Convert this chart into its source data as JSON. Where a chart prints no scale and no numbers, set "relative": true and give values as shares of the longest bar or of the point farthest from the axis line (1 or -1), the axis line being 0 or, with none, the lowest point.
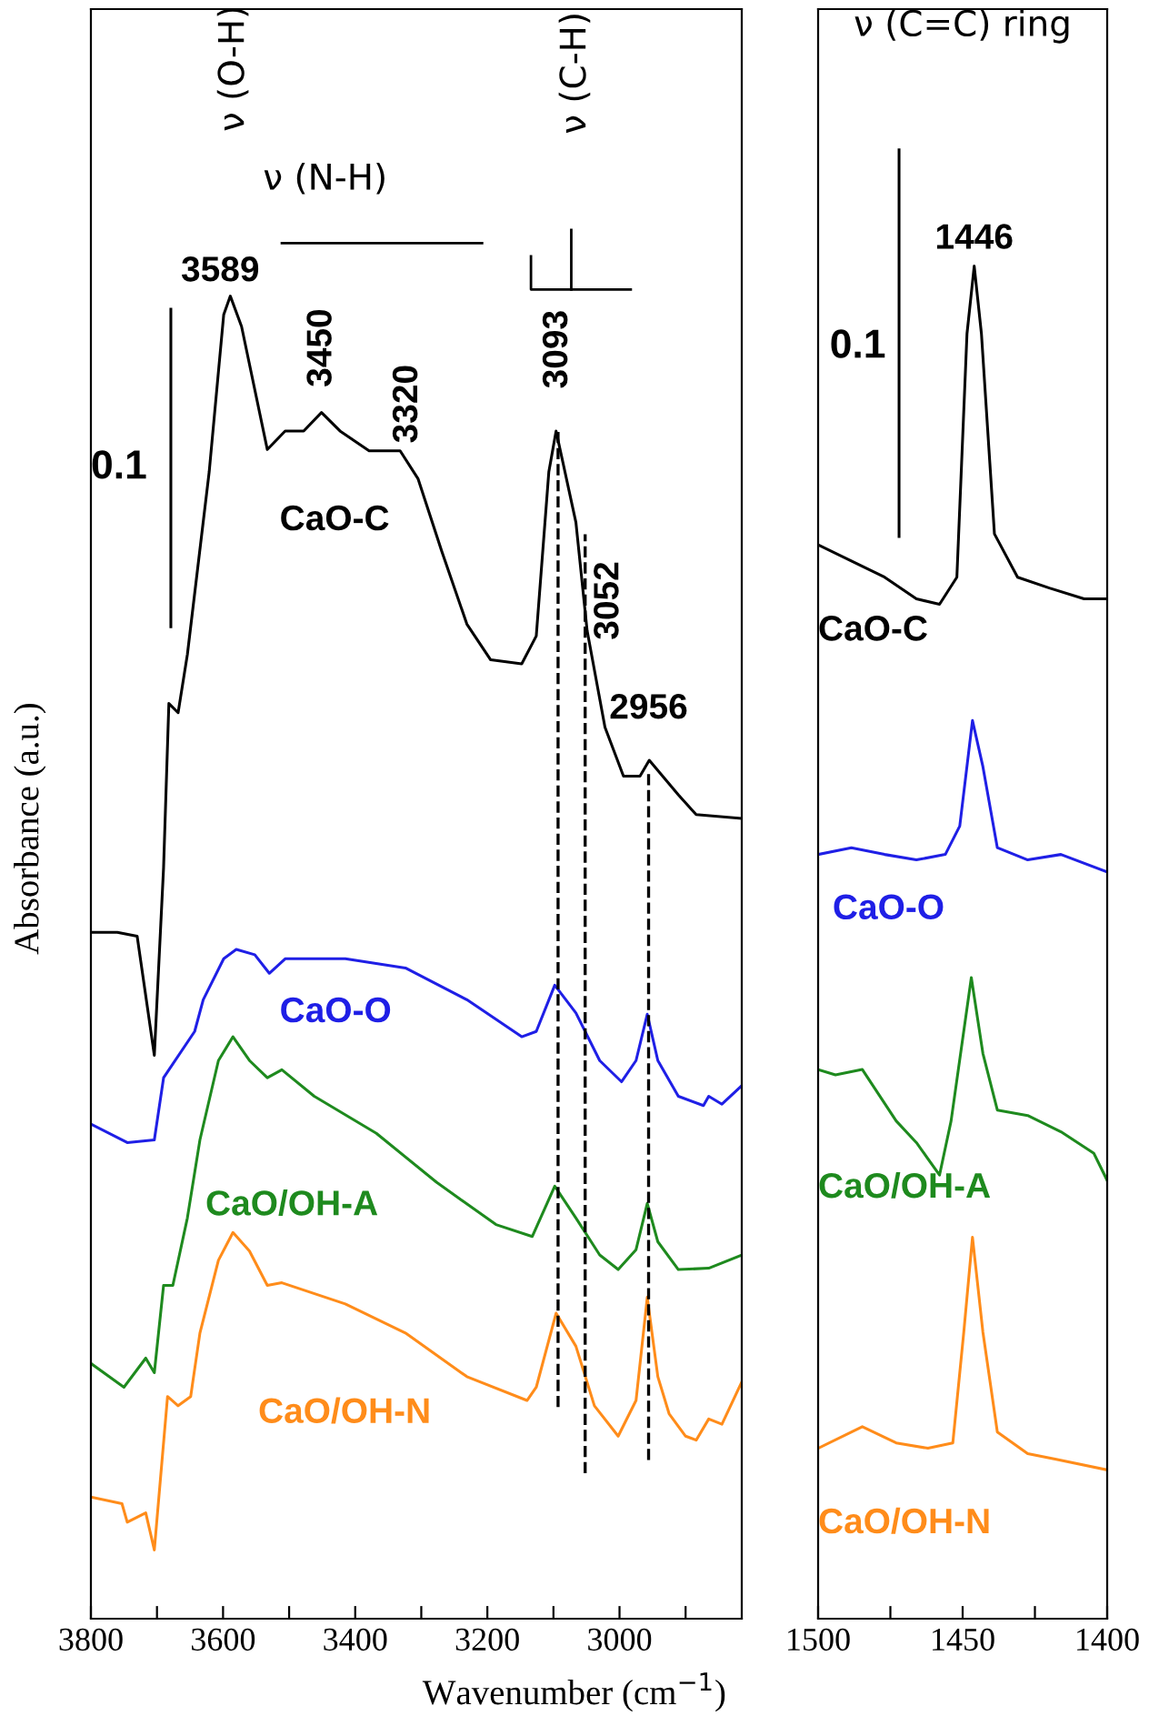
{
  "chart_data": [
    {
      "type": "line",
      "relative": true,
      "xlabel": "Wavenumber (cm$^{−1}$)",
      "ylabel": "Absorbance (a.u.)",
      "tick_labels": "x",
      "grid": false,
      "legend": false,
      "line_style": "solid",
      "marker": "none",
      "xlim": [
        3800,
        2815
      ],
      "xticks": [
        3800,
        {
          "value": 3700,
          "label": null
        },
        3600,
        {
          "value": 3500,
          "label": null
        },
        3400,
        {
          "value": 3300,
          "label": null
        },
        3200,
        {
          "value": 3100,
          "label": null
        },
        3000,
        {
          "value": 2900,
          "label": null
        }
      ],
      "series": [
        {
          "name": "CaO-C",
          "color": "#000000",
          "x": [
            3800,
            3760,
            3730,
            3704,
            3690,
            3682,
            3668,
            3654,
            3621,
            3599,
            3589,
            3572,
            3533,
            3506,
            3478,
            3451,
            3423,
            3379,
            3332,
            3305,
            3269,
            3231,
            3195,
            3148,
            3126,
            3107,
            3096,
            3066,
            3049,
            3022,
            2994,
            2969,
            2955,
            2911,
            2884,
            2815
          ],
          "values": [
            0.519,
            0.519,
            0.516,
            0.426,
            0.568,
            0.692,
            0.685,
            0.729,
            0.867,
            0.986,
            1.0,
            0.977,
            0.884,
            0.898,
            0.898,
            0.912,
            0.898,
            0.883,
            0.883,
            0.862,
            0.807,
            0.752,
            0.725,
            0.722,
            0.743,
            0.867,
            0.898,
            0.829,
            0.747,
            0.674,
            0.637,
            0.637,
            0.649,
            0.623,
            0.608,
            0.605
          ]
        },
        {
          "name": "CaO-O",
          "color": "#1f1fe6",
          "x": [
            3800,
            3745,
            3704,
            3690,
            3643,
            3630,
            3599,
            3580,
            3552,
            3530,
            3506,
            3415,
            3324,
            3231,
            3148,
            3126,
            3098,
            3066,
            3030,
            2997,
            2975,
            2958,
            2942,
            2911,
            2873,
            2865,
            2845,
            2815
          ],
          "values": [
            0.374,
            0.36,
            0.362,
            0.409,
            0.444,
            0.468,
            0.499,
            0.506,
            0.502,
            0.488,
            0.499,
            0.499,
            0.492,
            0.468,
            0.44,
            0.444,
            0.479,
            0.458,
            0.422,
            0.406,
            0.422,
            0.457,
            0.422,
            0.395,
            0.388,
            0.395,
            0.389,
            0.403
          ]
        },
        {
          "name": "CaO/OH-A",
          "color": "#1e8a1e",
          "x": [
            3800,
            3750,
            3717,
            3704,
            3690,
            3676,
            3654,
            3635,
            3607,
            3585,
            3560,
            3533,
            3511,
            3462,
            3368,
            3277,
            3187,
            3132,
            3098,
            3066,
            3030,
            3002,
            2975,
            2958,
            2942,
            2911,
            2865,
            2815
          ],
          "values": [
            0.193,
            0.175,
            0.197,
            0.186,
            0.252,
            0.252,
            0.303,
            0.362,
            0.422,
            0.44,
            0.422,
            0.409,
            0.415,
            0.395,
            0.367,
            0.33,
            0.298,
            0.289,
            0.327,
            0.303,
            0.275,
            0.264,
            0.279,
            0.314,
            0.285,
            0.264,
            0.265,
            0.275
          ]
        },
        {
          "name": "CaO/OH-N",
          "color": "#ff8c1a",
          "x": [
            3800,
            3753,
            3745,
            3717,
            3704,
            3684,
            3668,
            3649,
            3635,
            3607,
            3585,
            3560,
            3533,
            3511,
            3415,
            3324,
            3231,
            3140,
            3126,
            3096,
            3066,
            3038,
            3002,
            2975,
            2958,
            2942,
            2925,
            2900,
            2884,
            2865,
            2845,
            2815
          ],
          "values": [
            0.092,
            0.087,
            0.073,
            0.08,
            0.052,
            0.168,
            0.161,
            0.168,
            0.216,
            0.271,
            0.292,
            0.278,
            0.252,
            0.254,
            0.238,
            0.216,
            0.183,
            0.165,
            0.175,
            0.231,
            0.206,
            0.161,
            0.138,
            0.165,
            0.243,
            0.183,
            0.155,
            0.138,
            0.135,
            0.151,
            0.147,
            0.179
          ]
        }
      ],
      "ref_lines": [
        {
          "axis": "x",
          "value": 3093,
          "label": "3093",
          "color": "#000000",
          "line_style": "dashed"
        },
        {
          "axis": "x",
          "value": 3052,
          "label": "3052",
          "color": "#000000",
          "line_style": "dashed"
        },
        {
          "axis": "x",
          "value": 2956,
          "label": "2956",
          "color": "#000000",
          "line_style": "dashed"
        }
      ],
      "annotations": [
        {
          "text": "3589",
          "x": 3589,
          "y": 1.0
        },
        {
          "text": "3450",
          "x": 3450,
          "y": 0.912
        },
        {
          "text": "3320",
          "x": 3320,
          "y": 0.883
        },
        "ν (O-H)",
        "ν (N-H)",
        "ν (C-H)",
        "0.1"
      ]
    },
    {
      "type": "line",
      "relative": true,
      "tick_labels": "x",
      "grid": false,
      "legend": false,
      "line_style": "solid",
      "marker": "none",
      "xlim": [
        1500,
        1400
      ],
      "xticks": [
        1500,
        {
          "value": 1475,
          "label": null
        },
        1450,
        {
          "value": 1425,
          "label": null
        },
        1400
      ],
      "series": [
        {
          "name": "CaO-C",
          "color": "#000000",
          "x": [
            1500,
            1488.5,
            1477,
            1466,
            1458,
            1452,
            1448.5,
            1446,
            1443.5,
            1439,
            1431,
            1420,
            1408,
            1400
          ],
          "values": [
            0.794,
            0.782,
            0.77,
            0.754,
            0.75,
            0.77,
            0.95,
            1.0,
            0.95,
            0.802,
            0.77,
            0.762,
            0.754,
            0.754
          ]
        },
        {
          "name": "CaO-O",
          "color": "#1f1fe6",
          "x": [
            1500,
            1488.5,
            1477,
            1466,
            1456,
            1451,
            1446.6,
            1443,
            1438,
            1427.5,
            1416,
            1400
          ],
          "values": [
            0.565,
            0.57,
            0.565,
            0.561,
            0.565,
            0.586,
            0.664,
            0.63,
            0.57,
            0.561,
            0.565,
            0.552
          ]
        },
        {
          "name": "CaO/OH-A",
          "color": "#1e8a1e",
          "x": [
            1500,
            1494,
            1484.7,
            1473,
            1466,
            1458,
            1454,
            1447,
            1443,
            1438,
            1427.5,
            1416,
            1404.6,
            1400
          ],
          "values": [
            0.406,
            0.402,
            0.406,
            0.368,
            0.352,
            0.328,
            0.368,
            0.474,
            0.418,
            0.376,
            0.372,
            0.36,
            0.344,
            0.324
          ]
        },
        {
          "name": "CaO/OH-N",
          "color": "#ff8c1a",
          "x": [
            1500,
            1484.7,
            1473,
            1462,
            1453.4,
            1449.6,
            1446.6,
            1443,
            1438,
            1427.5,
            1418,
            1400
          ],
          "values": [
            0.126,
            0.142,
            0.13,
            0.126,
            0.13,
            0.212,
            0.282,
            0.212,
            0.138,
            0.122,
            0.118,
            0.11
          ]
        }
      ],
      "annotations": [
        {
          "text": "1446",
          "x": 1446,
          "y": 1.0
        },
        "ν (C=C) ring",
        "0.1"
      ]
    }
  ]
}
